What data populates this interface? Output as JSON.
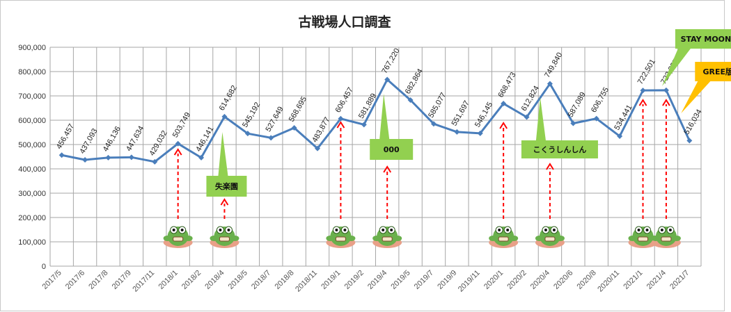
{
  "chart_data": {
    "type": "line",
    "title": "古戦場人口調査",
    "ylim": [
      0,
      900000
    ],
    "yticks": [
      "0",
      "100,000",
      "200,000",
      "300,000",
      "400,000",
      "500,000",
      "600,000",
      "700,000",
      "800,000",
      "900,000"
    ],
    "grid": true,
    "categories": [
      "2017/5",
      "2017/6",
      "2017/8",
      "2017/9",
      "2017/11",
      "2018/1",
      "2018/2",
      "2018/4",
      "2018/5",
      "2018/7",
      "2018/8",
      "2018/11",
      "2019/1",
      "2019/2",
      "2019/4",
      "2019/5",
      "2019/7",
      "2019/9",
      "2019/11",
      "2020/1",
      "2020/2",
      "2020/4",
      "2020/6",
      "2020/8",
      "2020/11",
      "2021/1",
      "2021/4",
      "2021/7"
    ],
    "values": [
      456457,
      437093,
      446136,
      447634,
      429032,
      503749,
      446141,
      614682,
      545192,
      527649,
      568695,
      483877,
      606457,
      581889,
      767220,
      682864,
      585077,
      551697,
      546145,
      668473,
      612824,
      749840,
      587089,
      606755,
      534441,
      722501,
      723337,
      516034
    ],
    "value_labels": [
      "456,457",
      "437,093",
      "446,136",
      "447,634",
      "429,032",
      "503,749",
      "446,141",
      "614,682",
      "545,192",
      "527,649",
      "568,695",
      "483,877",
      "606,457",
      "581,889",
      "767,220",
      "682,864",
      "585,077",
      "551,697",
      "546,145",
      "668,473",
      "612,824",
      "749,840",
      "587,089",
      "606,755",
      "534,441",
      "722,501",
      "723,337",
      "516,034"
    ],
    "series_color": "#4a7ebb",
    "annotations": [
      {
        "text": "失楽園",
        "color": "#92d050",
        "category_index": 7
      },
      {
        "text": "000",
        "color": "#92d050",
        "category_index": 14
      },
      {
        "text": "こくうしんしん",
        "color": "#92d050",
        "category_index": 21
      },
      {
        "text": "STAY MOON",
        "color": "#92d050",
        "category_index": 26
      },
      {
        "text": "GREE版終了",
        "color": "#ffc000",
        "category_index": 27
      }
    ],
    "marker_arrows": [
      5,
      7,
      12,
      14,
      19,
      21,
      25,
      26
    ],
    "mascots": [
      5,
      7,
      12,
      14,
      19,
      21,
      25,
      26
    ],
    "arrow_color": "#ff0000"
  }
}
